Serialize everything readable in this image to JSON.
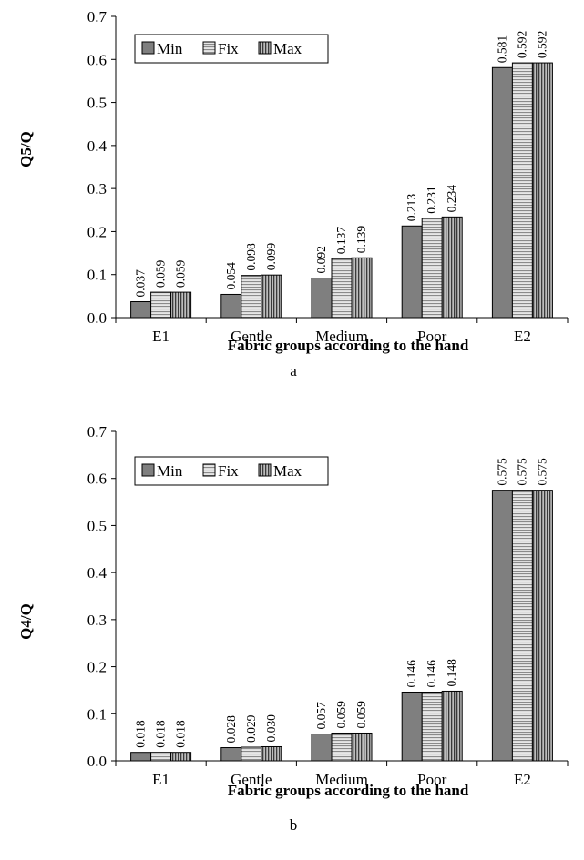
{
  "chart_data": [
    {
      "type": "bar",
      "ylabel": "Q5/Q",
      "xlabel": "Fabric groups according to the hand",
      "panel_label": "a",
      "categories": [
        "E1",
        "Gentle",
        "Medium",
        "Poor",
        "E2"
      ],
      "ylim": [
        0,
        0.7
      ],
      "yticks": [
        "0.0",
        "0.1",
        "0.2",
        "0.3",
        "0.4",
        "0.5",
        "0.6",
        "0.7"
      ],
      "legend_position": "top-left",
      "grid": false,
      "series": [
        {
          "name": "Min",
          "values": [
            0.037,
            0.054,
            0.092,
            0.213,
            0.581
          ],
          "labels": [
            "0.037",
            "0.054",
            "0.092",
            "0.213",
            "0.581"
          ]
        },
        {
          "name": "Fix",
          "values": [
            0.059,
            0.098,
            0.137,
            0.231,
            0.592
          ],
          "labels": [
            "0.059",
            "0.098",
            "0.137",
            "0.231",
            "0.592"
          ]
        },
        {
          "name": "Max",
          "values": [
            0.059,
            0.099,
            0.139,
            0.234,
            0.592
          ],
          "labels": [
            "0.059",
            "0.099",
            "0.139",
            "0.234",
            "0.592"
          ]
        }
      ]
    },
    {
      "type": "bar",
      "ylabel": "Q4/Q",
      "xlabel": "Fabric groups according to the hand",
      "panel_label": "b",
      "categories": [
        "E1",
        "Gentle",
        "Medium",
        "Poor",
        "E2"
      ],
      "ylim": [
        0,
        0.7
      ],
      "yticks": [
        "0.0",
        "0.1",
        "0.2",
        "0.3",
        "0.4",
        "0.5",
        "0.6",
        "0.7"
      ],
      "legend_position": "top-left",
      "grid": false,
      "series": [
        {
          "name": "Min",
          "values": [
            0.018,
            0.028,
            0.057,
            0.146,
            0.575
          ],
          "labels": [
            "0.018",
            "0.028",
            "0.057",
            "0.146",
            "0.575"
          ]
        },
        {
          "name": "Fix",
          "values": [
            0.018,
            0.029,
            0.059,
            0.146,
            0.575
          ],
          "labels": [
            "0.018",
            "0.029",
            "0.059",
            "0.146",
            "0.575"
          ]
        },
        {
          "name": "Max",
          "values": [
            0.018,
            0.03,
            0.059,
            0.148,
            0.575
          ],
          "labels": [
            "0.018",
            "0.030",
            "0.059",
            "0.148",
            "0.575"
          ]
        }
      ]
    }
  ],
  "colors": {
    "min_fill": "#7f7f7f",
    "fix_fill": "#e6e6e6",
    "fix_stripe": "#8a8a8a",
    "max_fill": "#bdbdbd",
    "max_stripe": "#3a3a3a",
    "axis": "#000000"
  }
}
